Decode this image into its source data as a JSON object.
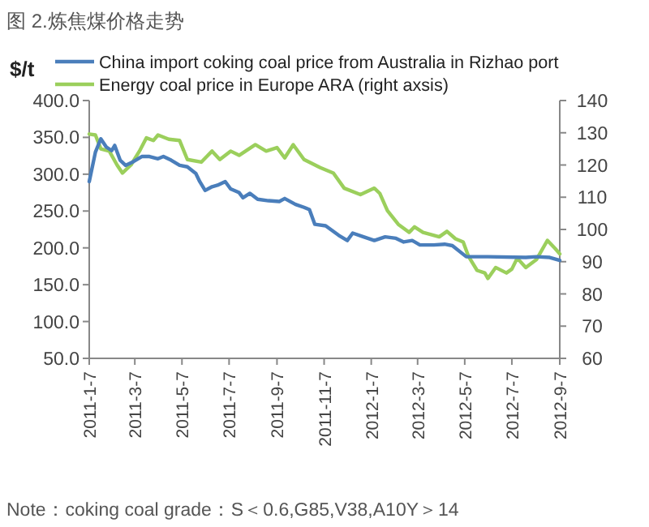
{
  "chart_data": {
    "type": "line",
    "title": "图 2.炼焦煤价格走势",
    "ylabel": "$/t",
    "annotations": [
      "Note：coking coal grade：S＜0.6,G85,V38,A10Y＞14"
    ],
    "legend": "top",
    "xlim": [
      "2011-01-07",
      "2012-09-07"
    ],
    "xticks": [
      {
        "value": "2011-01-07",
        "label": "2011-1-7"
      },
      {
        "value": "2011-03-07",
        "label": "2011-3-7"
      },
      {
        "value": "2011-05-07",
        "label": "2011-5-7"
      },
      {
        "value": "2011-07-07",
        "label": "2011-7-7"
      },
      {
        "value": "2011-09-07",
        "label": "2011-9-7"
      },
      {
        "value": "2011-11-07",
        "label": "2011-11-7"
      },
      {
        "value": "2012-01-07",
        "label": "2012-1-7"
      },
      {
        "value": "2012-03-07",
        "label": "2012-3-7"
      },
      {
        "value": "2012-05-07",
        "label": "2012-5-7"
      },
      {
        "value": "2012-07-07",
        "label": "2012-7-7"
      },
      {
        "value": "2012-09-07",
        "label": "2012-9-7"
      }
    ],
    "ylim": [
      50,
      400
    ],
    "yticks": [
      {
        "value": 50,
        "label": "50.0"
      },
      {
        "value": 100,
        "label": "100.0"
      },
      {
        "value": 150,
        "label": "150.0"
      },
      {
        "value": 200,
        "label": "200.0"
      },
      {
        "value": 250,
        "label": "250.0"
      },
      {
        "value": 300,
        "label": "300.0"
      },
      {
        "value": 350,
        "label": "350.0"
      },
      {
        "value": 400,
        "label": "400.0"
      }
    ],
    "y2lim": [
      60,
      140
    ],
    "y2ticks": [
      60,
      70,
      80,
      90,
      100,
      110,
      120,
      130,
      140
    ],
    "series": [
      {
        "name": "China import coking coal price from Australia in Rizhao port",
        "color": "#4a7ebb",
        "x": [
          "2011-01-07",
          "2011-01-15",
          "2011-01-22",
          "2011-01-29",
          "2011-02-05",
          "2011-02-09",
          "2011-02-16",
          "2011-02-23",
          "2011-03-05",
          "2011-03-16",
          "2011-03-26",
          "2011-04-06",
          "2011-04-13",
          "2011-04-23",
          "2011-05-04",
          "2011-05-14",
          "2011-05-25",
          "2011-05-30",
          "2011-06-06",
          "2011-06-15",
          "2011-06-22",
          "2011-07-02",
          "2011-07-09",
          "2011-07-20",
          "2011-07-25",
          "2011-08-03",
          "2011-08-13",
          "2011-08-27",
          "2011-09-10",
          "2011-09-17",
          "2011-10-01",
          "2011-10-12",
          "2011-10-19",
          "2011-10-26",
          "2011-11-09",
          "2011-11-26",
          "2011-12-07",
          "2011-12-14",
          "2011-12-28",
          "2012-01-11",
          "2012-01-25",
          "2012-02-08",
          "2012-02-18",
          "2012-02-29",
          "2012-03-10",
          "2012-03-28",
          "2012-04-11",
          "2012-04-21",
          "2012-05-09",
          "2012-06-06",
          "2012-07-25",
          "2012-08-08",
          "2012-08-25",
          "2012-09-07"
        ],
        "values": [
          290,
          330,
          348,
          337,
          332,
          339,
          319,
          312,
          317,
          324,
          324,
          321,
          324,
          319,
          312,
          310,
          301,
          290,
          278,
          283,
          285,
          290,
          280,
          275,
          268,
          274,
          266,
          264,
          263,
          267,
          259,
          255,
          252,
          232,
          230,
          217,
          210,
          220,
          215,
          210,
          215,
          213,
          208,
          210,
          204,
          204,
          205,
          203,
          188,
          188,
          187,
          188,
          187,
          183
        ]
      },
      {
        "name": "Energy coal price in Europe ARA (right axsis)",
        "color": "#9bcf5c",
        "axis": "y2",
        "x": [
          "2011-01-07",
          "2011-01-15",
          "2011-01-22",
          "2011-02-02",
          "2011-02-12",
          "2011-02-19",
          "2011-03-02",
          "2011-03-13",
          "2011-03-22",
          "2011-03-31",
          "2011-04-06",
          "2011-04-20",
          "2011-05-04",
          "2011-05-14",
          "2011-06-01",
          "2011-06-15",
          "2011-06-25",
          "2011-07-09",
          "2011-07-20",
          "2011-08-10",
          "2011-08-24",
          "2011-09-07",
          "2011-09-17",
          "2011-09-28",
          "2011-10-12",
          "2011-10-22",
          "2011-11-02",
          "2011-11-19",
          "2011-12-03",
          "2011-12-24",
          "2012-01-11",
          "2012-01-18",
          "2012-01-28",
          "2012-02-11",
          "2012-02-25",
          "2012-03-03",
          "2012-03-14",
          "2012-04-04",
          "2012-04-14",
          "2012-04-25",
          "2012-05-05",
          "2012-05-12",
          "2012-05-23",
          "2012-06-02",
          "2012-06-06",
          "2012-06-16",
          "2012-06-30",
          "2012-07-07",
          "2012-07-14",
          "2012-07-25",
          "2012-08-08",
          "2012-08-22",
          "2012-09-01",
          "2012-09-07"
        ],
        "values": [
          129.6,
          129.3,
          125,
          124.3,
          120,
          117.5,
          120,
          124.3,
          128.4,
          127.6,
          129.3,
          128,
          127.6,
          121.7,
          120.9,
          124.3,
          121.7,
          124.3,
          123,
          126.3,
          124.3,
          125.4,
          122.2,
          126.3,
          121.7,
          120.5,
          119.2,
          117.5,
          112.8,
          110.8,
          112.8,
          111.2,
          105.8,
          101.6,
          99.1,
          100.8,
          99.1,
          97.7,
          99.4,
          97.1,
          96.1,
          91.6,
          87.3,
          86.5,
          84.8,
          88.2,
          86.5,
          87.7,
          91.1,
          88.2,
          90.7,
          96.6,
          94.1,
          92.4
        ]
      }
    ]
  }
}
